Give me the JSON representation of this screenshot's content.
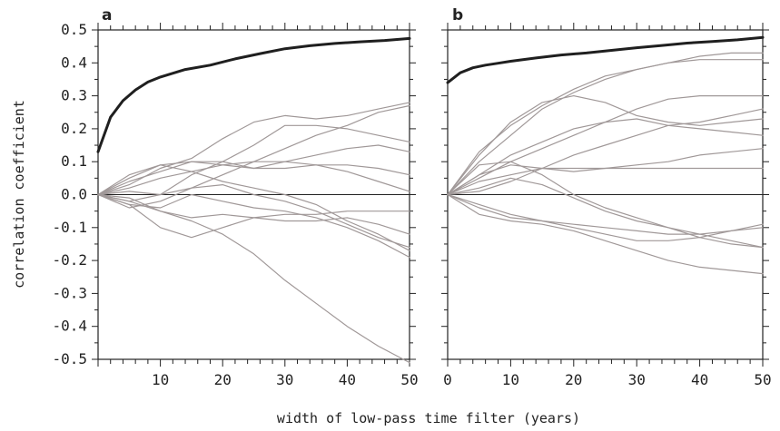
{
  "figure": {
    "xlabel": "width of low-pass time filter (years)",
    "ylabel": "correlation coefficient"
  },
  "chart_data": [
    {
      "type": "line",
      "panel_label": "a",
      "xlabel": "width of low-pass time filter (years)",
      "ylabel": "correlation coefficient",
      "xlim": [
        0,
        50
      ],
      "ylim": [
        -0.5,
        0.5
      ],
      "x_tick_labels": [
        "10",
        "20",
        "30",
        "40",
        "50"
      ],
      "y_tick_labels": [
        "0.5",
        "0.4",
        "0.3",
        "0.2",
        "0.1",
        "0.0",
        "-0.1",
        "-0.2",
        "-0.3",
        "-0.4",
        "-0.5"
      ],
      "zero_line": true,
      "grid": false,
      "legend": "none",
      "colors": {
        "highlight": "#1f1f1f",
        "ensemble": "#a09898",
        "axis": "#222222"
      },
      "series": [
        {
          "style": "highlight",
          "x": [
            0,
            2,
            4,
            6,
            8,
            10,
            14,
            18,
            22,
            26,
            30,
            34,
            38,
            42,
            46,
            50
          ],
          "values": [
            0.13,
            0.235,
            0.285,
            0.318,
            0.342,
            0.357,
            0.38,
            0.393,
            0.412,
            0.428,
            0.443,
            0.452,
            0.459,
            0.464,
            0.468,
            0.474
          ]
        },
        {
          "style": "ensemble",
          "x": [
            0,
            5,
            10,
            15,
            20,
            25,
            30,
            35,
            40,
            45,
            50
          ],
          "values": [
            0.0,
            0.03,
            0.08,
            0.11,
            0.17,
            0.22,
            0.24,
            0.23,
            0.24,
            0.26,
            0.28
          ]
        },
        {
          "style": "ensemble",
          "x": [
            0,
            5,
            10,
            15,
            20,
            25,
            30,
            35,
            40,
            45,
            50
          ],
          "values": [
            0.0,
            -0.02,
            0.0,
            0.06,
            0.1,
            0.15,
            0.21,
            0.21,
            0.2,
            0.18,
            0.16
          ]
        },
        {
          "style": "ensemble",
          "x": [
            0,
            5,
            10,
            15,
            20,
            25,
            30,
            35,
            40,
            45,
            50
          ],
          "values": [
            0.0,
            -0.04,
            -0.02,
            0.02,
            0.06,
            0.1,
            0.14,
            0.18,
            0.21,
            0.25,
            0.27
          ]
        },
        {
          "style": "ensemble",
          "x": [
            0,
            5,
            10,
            15,
            20,
            25,
            30,
            35,
            40,
            45,
            50
          ],
          "values": [
            0.0,
            0.06,
            0.09,
            0.1,
            0.1,
            0.08,
            0.1,
            0.12,
            0.14,
            0.15,
            0.13
          ]
        },
        {
          "style": "ensemble",
          "x": [
            0,
            5,
            10,
            15,
            20,
            25,
            30,
            35,
            40,
            45,
            50
          ],
          "values": [
            0.0,
            0.04,
            0.07,
            0.1,
            0.09,
            0.08,
            0.08,
            0.09,
            0.09,
            0.08,
            0.06
          ]
        },
        {
          "style": "ensemble",
          "x": [
            0,
            5,
            10,
            15,
            20,
            25,
            30,
            35,
            40,
            45,
            50
          ],
          "values": [
            0.0,
            0.02,
            0.05,
            0.07,
            0.09,
            0.1,
            0.1,
            0.09,
            0.07,
            0.04,
            0.01
          ]
        },
        {
          "style": "ensemble",
          "x": [
            0,
            5,
            10,
            15,
            20,
            25,
            30,
            35,
            40,
            45,
            50
          ],
          "values": [
            0.0,
            0.05,
            0.09,
            0.07,
            0.04,
            0.02,
            0.0,
            -0.03,
            -0.08,
            -0.12,
            -0.17
          ]
        },
        {
          "style": "ensemble",
          "x": [
            0,
            5,
            10,
            15,
            20,
            25,
            30,
            35,
            40,
            45,
            50
          ],
          "values": [
            0.0,
            0.01,
            0.0,
            0.02,
            0.03,
            0.0,
            -0.02,
            -0.05,
            -0.09,
            -0.13,
            -0.16
          ]
        },
        {
          "style": "ensemble",
          "x": [
            0,
            5,
            10,
            15,
            20,
            25,
            30,
            35,
            40,
            45,
            50
          ],
          "values": [
            0.0,
            -0.03,
            -0.04,
            0.0,
            -0.02,
            -0.04,
            -0.05,
            -0.07,
            -0.1,
            -0.14,
            -0.19
          ]
        },
        {
          "style": "ensemble",
          "x": [
            0,
            5,
            10,
            15,
            20,
            25,
            30,
            35,
            40,
            45,
            50
          ],
          "values": [
            0.0,
            -0.02,
            -0.05,
            -0.07,
            -0.06,
            -0.07,
            -0.08,
            -0.08,
            -0.07,
            -0.09,
            -0.12
          ]
        },
        {
          "style": "ensemble",
          "x": [
            0,
            5,
            10,
            15,
            20,
            25,
            30,
            35,
            40,
            45,
            50
          ],
          "values": [
            0.0,
            -0.03,
            -0.1,
            -0.13,
            -0.1,
            -0.07,
            -0.06,
            -0.06,
            -0.05,
            -0.05,
            -0.05
          ]
        },
        {
          "style": "ensemble",
          "x": [
            0,
            5,
            10,
            15,
            20,
            25,
            30,
            35,
            40,
            45,
            50
          ],
          "values": [
            0.0,
            -0.01,
            -0.05,
            -0.08,
            -0.12,
            -0.18,
            -0.26,
            -0.33,
            -0.4,
            -0.46,
            -0.51
          ]
        }
      ]
    },
    {
      "type": "line",
      "panel_label": "b",
      "xlabel": "width of low-pass time filter (years)",
      "ylabel": "correlation coefficient",
      "xlim": [
        0,
        50
      ],
      "ylim": [
        -0.5,
        0.5
      ],
      "x_tick_labels": [
        "0",
        "10",
        "20",
        "30",
        "40",
        "50"
      ],
      "y_tick_labels": [],
      "zero_line": true,
      "grid": false,
      "legend": "none",
      "colors": {
        "highlight": "#1f1f1f",
        "ensemble": "#a09898",
        "axis": "#222222"
      },
      "series": [
        {
          "style": "highlight",
          "x": [
            0,
            2,
            4,
            6,
            8,
            10,
            14,
            18,
            22,
            26,
            30,
            34,
            38,
            42,
            46,
            50
          ],
          "values": [
            0.34,
            0.37,
            0.385,
            0.393,
            0.399,
            0.405,
            0.415,
            0.424,
            0.43,
            0.438,
            0.446,
            0.453,
            0.46,
            0.465,
            0.47,
            0.477
          ]
        },
        {
          "style": "ensemble",
          "x": [
            0,
            5,
            10,
            15,
            20,
            25,
            30,
            35,
            40,
            45,
            50
          ],
          "values": [
            0.0,
            0.13,
            0.21,
            0.27,
            0.32,
            0.36,
            0.38,
            0.4,
            0.42,
            0.43,
            0.43
          ]
        },
        {
          "style": "ensemble",
          "x": [
            0,
            5,
            10,
            15,
            20,
            25,
            30,
            35,
            40,
            45,
            50
          ],
          "values": [
            0.0,
            0.1,
            0.18,
            0.26,
            0.31,
            0.35,
            0.38,
            0.4,
            0.41,
            0.41,
            0.41
          ]
        },
        {
          "style": "ensemble",
          "x": [
            0,
            5,
            10,
            15,
            20,
            25,
            30,
            35,
            40,
            45,
            50
          ],
          "values": [
            0.0,
            0.12,
            0.22,
            0.28,
            0.3,
            0.28,
            0.24,
            0.22,
            0.21,
            0.22,
            0.23
          ]
        },
        {
          "style": "ensemble",
          "x": [
            0,
            5,
            10,
            15,
            20,
            25,
            30,
            35,
            40,
            45,
            50
          ],
          "values": [
            0.0,
            0.05,
            0.1,
            0.14,
            0.18,
            0.22,
            0.26,
            0.29,
            0.3,
            0.3,
            0.3
          ]
        },
        {
          "style": "ensemble",
          "x": [
            0,
            5,
            10,
            15,
            20,
            25,
            30,
            35,
            40,
            45,
            50
          ],
          "values": [
            0.0,
            0.06,
            0.12,
            0.16,
            0.2,
            0.22,
            0.23,
            0.21,
            0.2,
            0.19,
            0.18
          ]
        },
        {
          "style": "ensemble",
          "x": [
            0,
            5,
            10,
            15,
            20,
            25,
            30,
            35,
            40,
            45,
            50
          ],
          "values": [
            0.0,
            0.01,
            0.04,
            0.08,
            0.12,
            0.15,
            0.18,
            0.21,
            0.22,
            0.24,
            0.26
          ]
        },
        {
          "style": "ensemble",
          "x": [
            0,
            5,
            10,
            15,
            20,
            25,
            30,
            35,
            40,
            45,
            50
          ],
          "values": [
            0.0,
            0.06,
            0.09,
            0.08,
            0.07,
            0.08,
            0.09,
            0.1,
            0.12,
            0.13,
            0.14
          ]
        },
        {
          "style": "ensemble",
          "x": [
            0,
            5,
            10,
            15,
            20,
            25,
            30,
            35,
            40,
            45,
            50
          ],
          "values": [
            0.0,
            0.04,
            0.06,
            0.08,
            0.08,
            0.08,
            0.08,
            0.08,
            0.08,
            0.08,
            0.08
          ]
        },
        {
          "style": "ensemble",
          "x": [
            0,
            5,
            10,
            15,
            20,
            25,
            30,
            35,
            40,
            45,
            50
          ],
          "values": [
            0.0,
            0.09,
            0.1,
            0.06,
            0.0,
            -0.04,
            -0.07,
            -0.1,
            -0.13,
            -0.15,
            -0.16
          ]
        },
        {
          "style": "ensemble",
          "x": [
            0,
            5,
            10,
            15,
            20,
            25,
            30,
            35,
            40,
            45,
            50
          ],
          "values": [
            0.0,
            0.02,
            0.05,
            0.03,
            -0.01,
            -0.05,
            -0.08,
            -0.1,
            -0.12,
            -0.14,
            -0.16
          ]
        },
        {
          "style": "ensemble",
          "x": [
            0,
            5,
            10,
            15,
            20,
            25,
            30,
            35,
            40,
            45,
            50
          ],
          "values": [
            0.0,
            -0.04,
            -0.07,
            -0.08,
            -0.09,
            -0.1,
            -0.11,
            -0.12,
            -0.12,
            -0.11,
            -0.09
          ]
        },
        {
          "style": "ensemble",
          "x": [
            0,
            5,
            10,
            15,
            20,
            25,
            30,
            35,
            40,
            45,
            50
          ],
          "values": [
            0.0,
            -0.06,
            -0.08,
            -0.09,
            -0.11,
            -0.14,
            -0.17,
            -0.2,
            -0.22,
            -0.23,
            -0.24
          ]
        },
        {
          "style": "ensemble",
          "x": [
            0,
            5,
            10,
            15,
            20,
            25,
            30,
            35,
            40,
            45,
            50
          ],
          "values": [
            0.0,
            -0.03,
            -0.06,
            -0.08,
            -0.1,
            -0.12,
            -0.14,
            -0.14,
            -0.13,
            -0.11,
            -0.1
          ]
        }
      ]
    }
  ]
}
